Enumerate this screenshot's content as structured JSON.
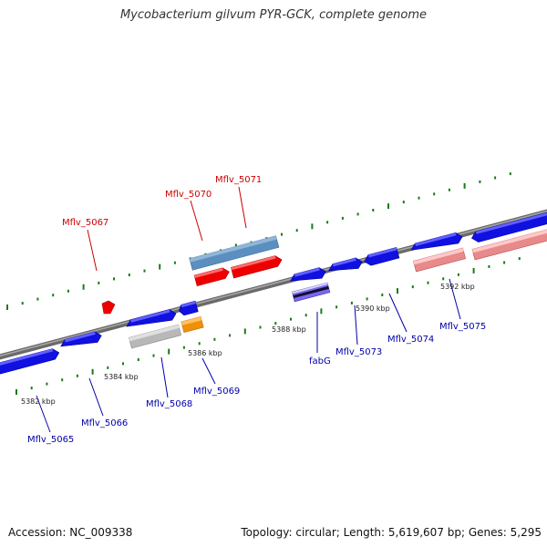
{
  "title": "Mycobacterium gilvum PYR-GCK, complete genome",
  "footer": {
    "accession": "Accession: NC_009338",
    "summary": "Topology: circular; Length: 5,619,607 bp; Genes: 5,295"
  },
  "colors": {
    "backbone": "#808080",
    "tick": "#1a7a1a",
    "label_top": "#cc0000",
    "label_bottom": "#0000aa"
  },
  "kbp_markers": [
    "5382 kbp",
    "5384 kbp",
    "5386 kbp",
    "5388 kbp",
    "5390 kbp",
    "5392 kbp"
  ],
  "gene_labels": [
    {
      "id": "Mflv_5065",
      "text": "Mflv_5065",
      "side": "bottom"
    },
    {
      "id": "Mflv_5066",
      "text": "Mflv_5066",
      "side": "bottom"
    },
    {
      "id": "Mflv_5067",
      "text": "Mflv_5067",
      "side": "top"
    },
    {
      "id": "Mflv_5068",
      "text": "Mflv_5068",
      "side": "bottom"
    },
    {
      "id": "Mflv_5069",
      "text": "Mflv_5069",
      "side": "bottom"
    },
    {
      "id": "Mflv_5070",
      "text": "Mflv_5070",
      "side": "top"
    },
    {
      "id": "Mflv_5071",
      "text": "Mflv_5071",
      "side": "top"
    },
    {
      "id": "fabG",
      "text": "fabG",
      "side": "bottom"
    },
    {
      "id": "Mflv_5073",
      "text": "Mflv_5073",
      "side": "bottom"
    },
    {
      "id": "Mflv_5074",
      "text": "Mflv_5074",
      "side": "bottom"
    },
    {
      "id": "Mflv_5075",
      "text": "Mflv_5075",
      "side": "bottom"
    }
  ]
}
